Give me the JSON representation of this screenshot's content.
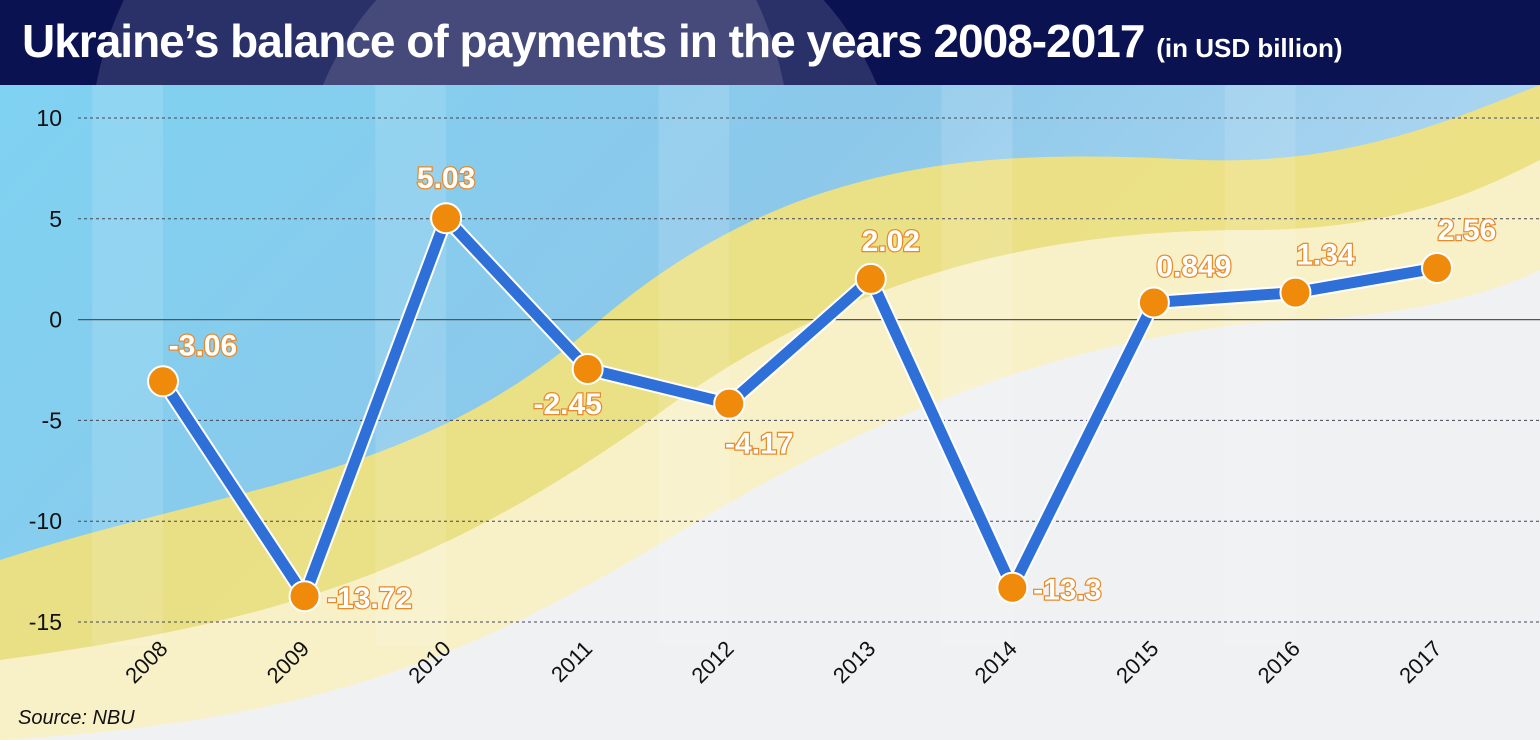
{
  "chart_data": {
    "type": "line",
    "title": "Ukraine’s balance of payments in the years 2008-2017",
    "subtitle": "(in USD billion)",
    "xlabel": "",
    "ylabel": "",
    "categories": [
      "2008",
      "2009",
      "2010",
      "2011",
      "2012",
      "2013",
      "2014",
      "2015",
      "2016",
      "2017"
    ],
    "series": [
      {
        "name": "Balance of payments",
        "values": [
          -3.06,
          -13.72,
          5.03,
          -2.45,
          -4.17,
          2.02,
          -13.3,
          0.849,
          1.34,
          2.56
        ],
        "labels": [
          "-3.06",
          "-13.72",
          "5.03",
          "-2.45",
          "-4.17",
          "2.02",
          "-13.3",
          "0.849",
          "1.34",
          "2.56"
        ]
      }
    ],
    "ylim": [
      -15,
      10
    ],
    "yticks": [
      10,
      5,
      0,
      -5,
      -10,
      -15
    ],
    "grid": true,
    "legend": "none",
    "colors": {
      "line": "#2f6fd8",
      "marker": "#f08a0a",
      "title_bg": "#0b1252"
    }
  },
  "source": "Source: NBU"
}
